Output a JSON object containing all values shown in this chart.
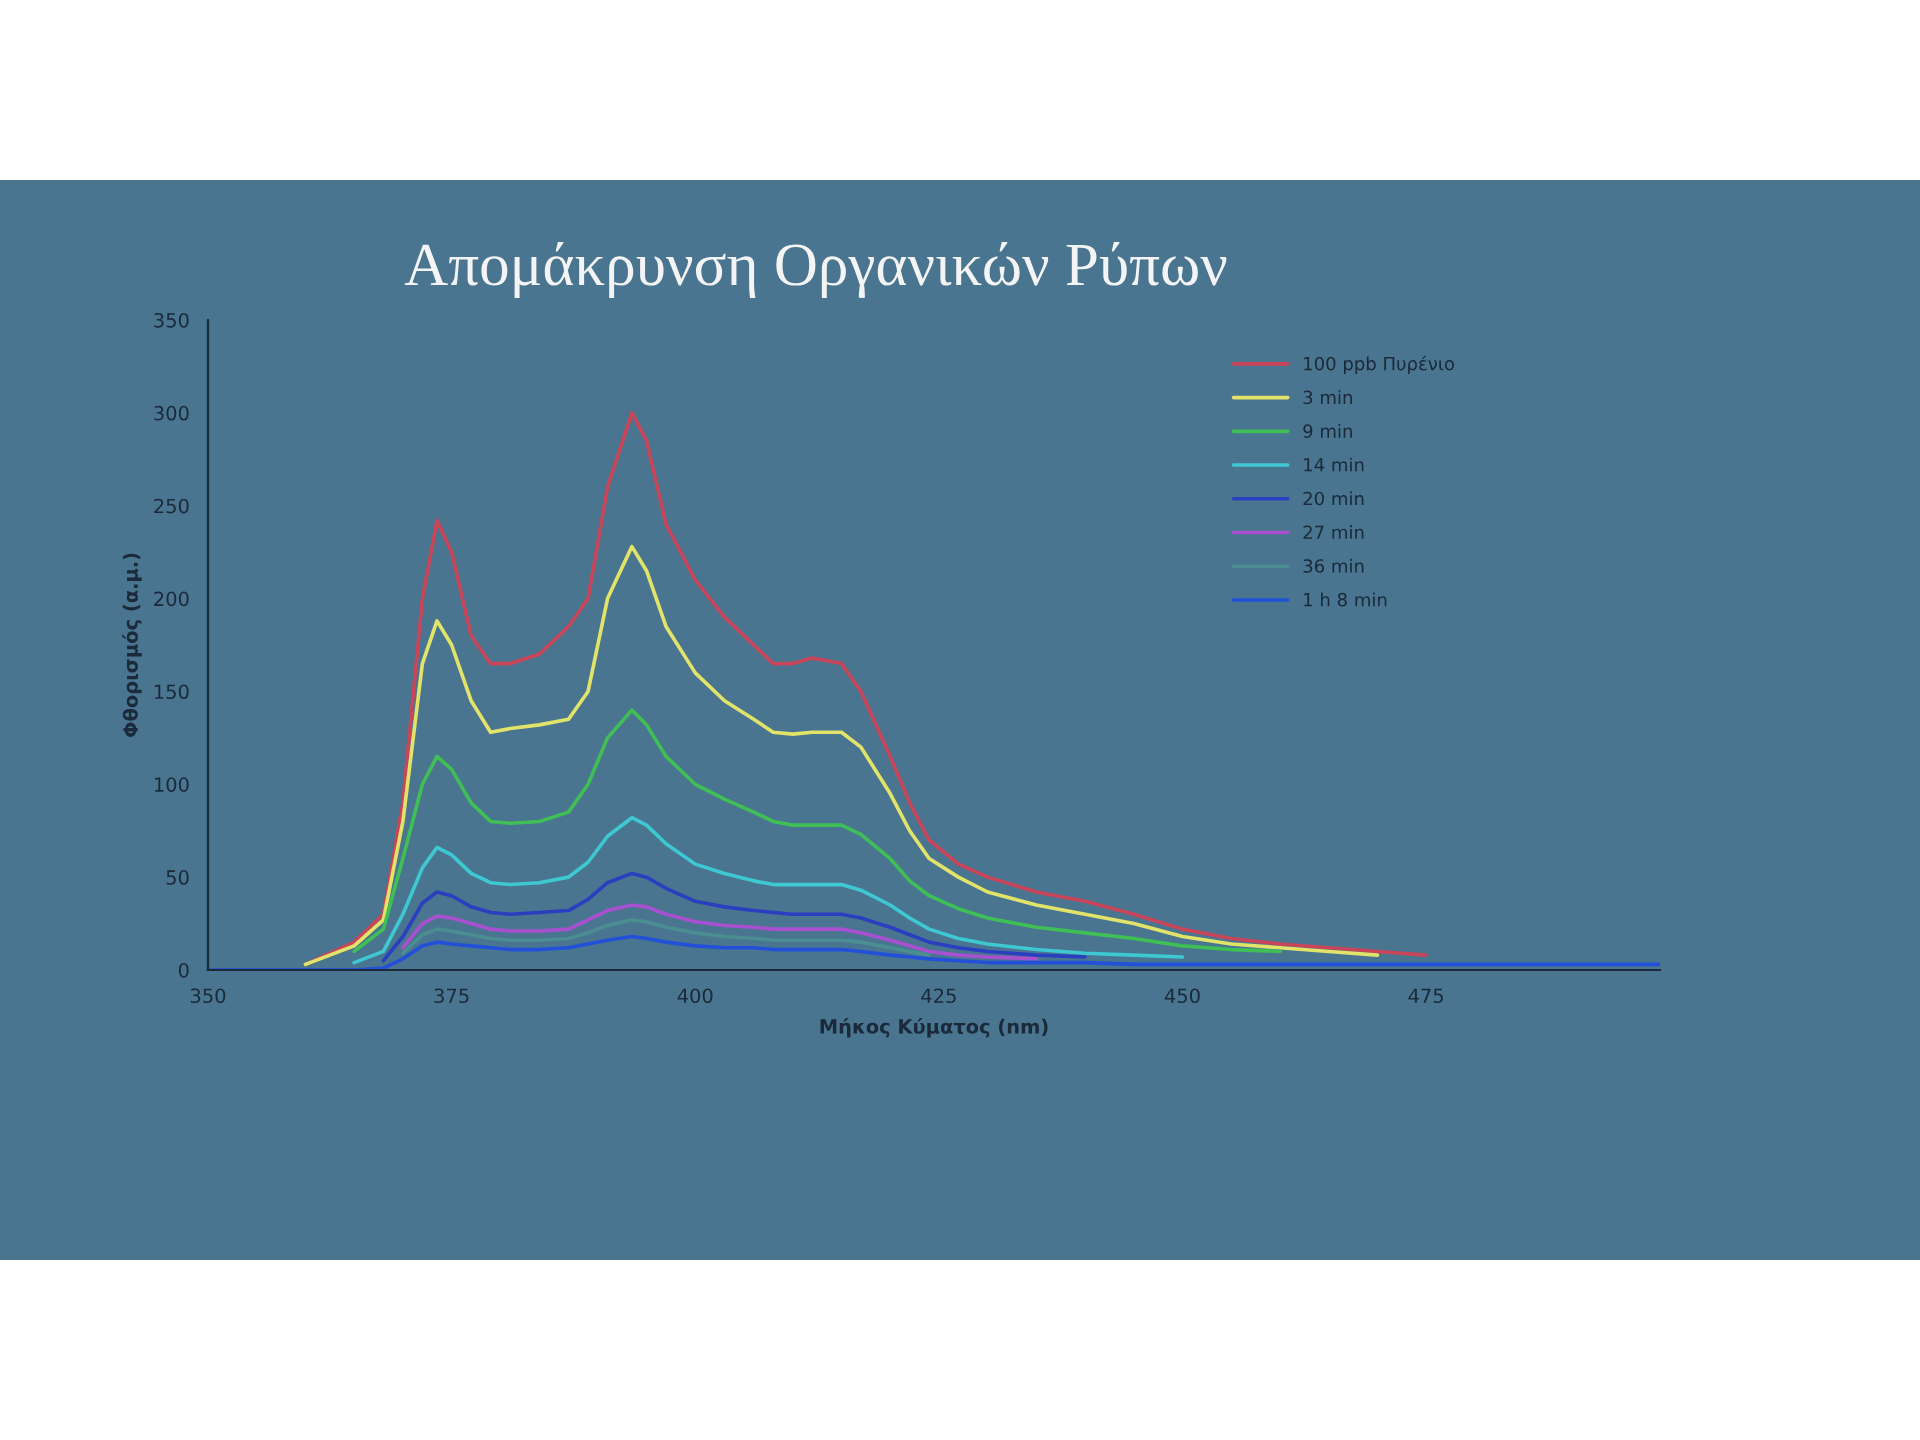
{
  "chart_data": {
    "type": "line",
    "title": "Απομάκρυνση Οργανικών Ρύπων",
    "xlabel": "Μήκος Κύματος (nm)",
    "ylabel": "Φθορισμός (α.μ.)",
    "x": [
      350,
      355,
      360,
      365,
      368,
      370,
      372,
      373.5,
      375,
      377,
      379,
      381,
      384,
      387,
      389,
      391,
      393.5,
      395,
      397,
      400,
      403,
      406,
      408,
      410,
      412,
      415,
      417,
      420,
      422,
      424,
      427,
      430,
      435,
      440,
      445,
      450,
      455,
      460,
      465,
      470,
      475,
      480,
      485,
      490,
      495,
      499
    ],
    "xlim": [
      350,
      499
    ],
    "xticks": [
      350,
      375,
      400,
      425,
      450,
      475
    ],
    "ylim": [
      0,
      350
    ],
    "yticks": [
      0,
      50,
      100,
      150,
      200,
      250,
      300,
      350
    ],
    "grid": false,
    "legend": "top right",
    "marker": "none",
    "line_style": "solid",
    "series": [
      {
        "name": "100 ppb Πυρένιο",
        "color": "#c8455a",
        "x": [
          360,
          365,
          368,
          370,
          372,
          373.5,
          375,
          377,
          379,
          381,
          384,
          387,
          389,
          391,
          393.5,
          395,
          397,
          400,
          403,
          406,
          408,
          410,
          412,
          415,
          417,
          420,
          422,
          424,
          427,
          430,
          435,
          440,
          445,
          450,
          455,
          460,
          465,
          470,
          475
        ],
        "values": [
          3,
          15,
          30,
          90,
          200,
          242,
          225,
          180,
          165,
          165,
          170,
          185,
          200,
          260,
          300,
          285,
          240,
          210,
          190,
          175,
          165,
          165,
          168,
          165,
          150,
          115,
          90,
          70,
          57,
          50,
          42,
          37,
          30,
          22,
          17,
          14,
          12,
          10,
          8
        ]
      },
      {
        "name": "3 min",
        "color": "#e2e46a",
        "x": [
          360,
          365,
          368,
          370,
          372,
          373.5,
          375,
          377,
          379,
          381,
          384,
          387,
          389,
          391,
          393.5,
          395,
          397,
          400,
          403,
          406,
          408,
          410,
          412,
          415,
          417,
          420,
          422,
          424,
          427,
          430,
          435,
          440,
          445,
          450,
          455,
          460,
          465,
          470
        ],
        "values": [
          3,
          13,
          27,
          80,
          165,
          188,
          175,
          145,
          128,
          130,
          132,
          135,
          150,
          200,
          228,
          215,
          185,
          160,
          145,
          135,
          128,
          127,
          128,
          128,
          120,
          95,
          75,
          60,
          50,
          42,
          35,
          30,
          25,
          18,
          14,
          12,
          10,
          8
        ]
      },
      {
        "name": "9 min",
        "color": "#3fbf55",
        "x": [
          365,
          368,
          370,
          372,
          373.5,
          375,
          377,
          379,
          381,
          384,
          387,
          389,
          391,
          393.5,
          395,
          397,
          400,
          403,
          406,
          408,
          410,
          412,
          415,
          417,
          420,
          422,
          424,
          427,
          430,
          435,
          440,
          445,
          450,
          455,
          460
        ],
        "values": [
          10,
          22,
          60,
          100,
          115,
          108,
          90,
          80,
          79,
          80,
          85,
          100,
          125,
          140,
          132,
          115,
          100,
          92,
          85,
          80,
          78,
          78,
          78,
          73,
          60,
          48,
          40,
          33,
          28,
          23,
          20,
          17,
          13,
          11,
          10
        ]
      },
      {
        "name": "14 min",
        "color": "#3ec8d2",
        "x": [
          365,
          368,
          370,
          372,
          373.5,
          375,
          377,
          379,
          381,
          384,
          387,
          389,
          391,
          393.5,
          395,
          397,
          400,
          403,
          406,
          408,
          410,
          412,
          415,
          417,
          420,
          422,
          424,
          427,
          430,
          435,
          440,
          445,
          450
        ],
        "values": [
          4,
          10,
          30,
          55,
          66,
          62,
          52,
          47,
          46,
          47,
          50,
          58,
          72,
          82,
          78,
          68,
          57,
          52,
          48,
          46,
          46,
          46,
          46,
          43,
          35,
          28,
          22,
          17,
          14,
          11,
          9,
          8,
          7
        ]
      },
      {
        "name": "20 min",
        "color": "#2a3fc0",
        "x": [
          368,
          370,
          372,
          373.5,
          375,
          377,
          379,
          381,
          384,
          387,
          389,
          391,
          393.5,
          395,
          397,
          400,
          403,
          406,
          408,
          410,
          412,
          415,
          417,
          420,
          422,
          424,
          427,
          430,
          435,
          440
        ],
        "values": [
          5,
          18,
          36,
          42,
          40,
          34,
          31,
          30,
          31,
          32,
          38,
          47,
          52,
          50,
          44,
          37,
          34,
          32,
          31,
          30,
          30,
          30,
          28,
          23,
          19,
          15,
          12,
          10,
          8,
          7
        ]
      },
      {
        "name": "27 min",
        "color": "#a850d0",
        "x": [
          370,
          372,
          373.5,
          375,
          377,
          379,
          381,
          384,
          387,
          389,
          391,
          393.5,
          395,
          397,
          400,
          403,
          406,
          408,
          410,
          412,
          415,
          417,
          420,
          422,
          424,
          427,
          430,
          435
        ],
        "values": [
          12,
          25,
          29,
          28,
          25,
          22,
          21,
          21,
          22,
          27,
          32,
          35,
          34,
          30,
          26,
          24,
          23,
          22,
          22,
          22,
          22,
          20,
          16,
          13,
          10,
          8,
          7,
          6
        ]
      },
      {
        "name": "36 min",
        "color": "#4b8e92",
        "x": [
          370,
          372,
          373.5,
          375,
          377,
          379,
          381,
          384,
          387,
          389,
          391,
          393.5,
          395,
          397,
          400,
          403,
          406,
          408,
          410,
          412,
          415,
          417,
          420,
          422,
          424
        ],
        "values": [
          9,
          19,
          22,
          21,
          19,
          17,
          16,
          16,
          17,
          20,
          24,
          27,
          26,
          23,
          20,
          18,
          17,
          16,
          16,
          16,
          16,
          15,
          12,
          10,
          8
        ]
      },
      {
        "name": "1 h 8 min",
        "color": "#2250d8",
        "values": [
          0,
          0,
          0,
          0,
          1,
          6,
          13,
          15,
          14,
          13,
          12,
          11,
          11,
          12,
          14,
          16,
          18,
          17,
          15,
          13,
          12,
          12,
          11,
          11,
          11,
          11,
          10,
          8,
          7,
          6,
          5,
          4,
          4,
          4,
          3,
          3,
          3,
          3,
          3,
          3,
          3,
          3,
          3,
          3,
          3,
          3
        ]
      }
    ]
  }
}
